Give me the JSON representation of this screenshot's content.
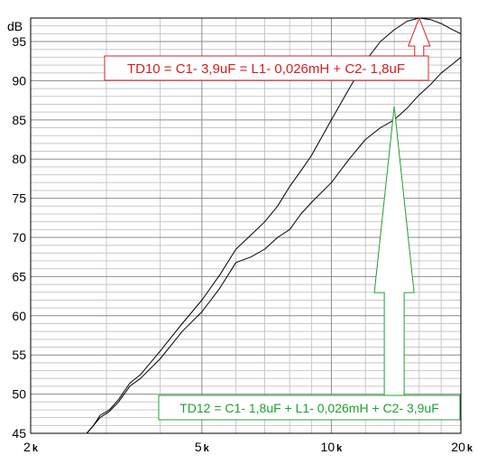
{
  "chart_data": {
    "type": "line",
    "title": "",
    "ylabel": "dB",
    "xlabel": "",
    "x_scale": "log",
    "xlim": [
      2000,
      20000
    ],
    "ylim": [
      45,
      98
    ],
    "x_ticks": [
      {
        "value": 2000,
        "num": "2",
        "unit": "k"
      },
      {
        "value": 5000,
        "num": "5",
        "unit": "k"
      },
      {
        "value": 10000,
        "num": "10",
        "unit": "k"
      },
      {
        "value": 20000,
        "num": "20",
        "unit": "k"
      }
    ],
    "y_ticks": [
      45,
      50,
      55,
      60,
      65,
      70,
      75,
      80,
      85,
      90,
      95
    ],
    "grid": true,
    "series": [
      {
        "name": "TD10",
        "color": "#000000",
        "points": [
          [
            2700,
            45
          ],
          [
            2800,
            46
          ],
          [
            2900,
            47.3
          ],
          [
            3050,
            48
          ],
          [
            3200,
            49.3
          ],
          [
            3400,
            51.4
          ],
          [
            3600,
            52.5
          ],
          [
            4000,
            55.5
          ],
          [
            4500,
            59
          ],
          [
            5000,
            62
          ],
          [
            5500,
            65.2
          ],
          [
            6000,
            68.5
          ],
          [
            6500,
            70.3
          ],
          [
            7000,
            72
          ],
          [
            7500,
            74
          ],
          [
            8000,
            76.5
          ],
          [
            8500,
            78.5
          ],
          [
            9000,
            80.5
          ],
          [
            10000,
            85
          ],
          [
            11000,
            89
          ],
          [
            12000,
            92.5
          ],
          [
            13000,
            95
          ],
          [
            14000,
            96.5
          ],
          [
            15000,
            97.6
          ],
          [
            16000,
            98
          ],
          [
            17000,
            97.8
          ],
          [
            18000,
            97.3
          ],
          [
            19000,
            96.6
          ],
          [
            20000,
            96
          ]
        ]
      },
      {
        "name": "TD12",
        "color": "#000000",
        "points": [
          [
            2700,
            45
          ],
          [
            2800,
            46
          ],
          [
            2900,
            47
          ],
          [
            3050,
            47.8
          ],
          [
            3200,
            49
          ],
          [
            3400,
            51
          ],
          [
            3600,
            52
          ],
          [
            4000,
            54.5
          ],
          [
            4500,
            58
          ],
          [
            5000,
            60.5
          ],
          [
            5500,
            63.5
          ],
          [
            6000,
            66.8
          ],
          [
            6500,
            67.5
          ],
          [
            7000,
            68.5
          ],
          [
            7500,
            70
          ],
          [
            8000,
            71
          ],
          [
            8500,
            73
          ],
          [
            9000,
            74.5
          ],
          [
            10000,
            77
          ],
          [
            11000,
            80
          ],
          [
            12000,
            82.5
          ],
          [
            13000,
            84
          ],
          [
            14000,
            85
          ],
          [
            15000,
            86.5
          ],
          [
            16000,
            88.2
          ],
          [
            17000,
            89.5
          ],
          [
            18000,
            91
          ],
          [
            19000,
            92
          ],
          [
            20000,
            93
          ]
        ]
      }
    ],
    "annotations": [
      {
        "id": "td10",
        "text": "TD10 = C1- 3,9uF = L1- 0,026mH + C2- 1,8uF",
        "color": "#d42020",
        "arrow_target": [
          16000,
          98
        ]
      },
      {
        "id": "td12",
        "text": "TD12 = C1- 1,8uF + L1- 0,026mH + C2- 3,9uF",
        "color": "#20a030",
        "arrow_target": [
          14000,
          86.7
        ]
      }
    ]
  }
}
